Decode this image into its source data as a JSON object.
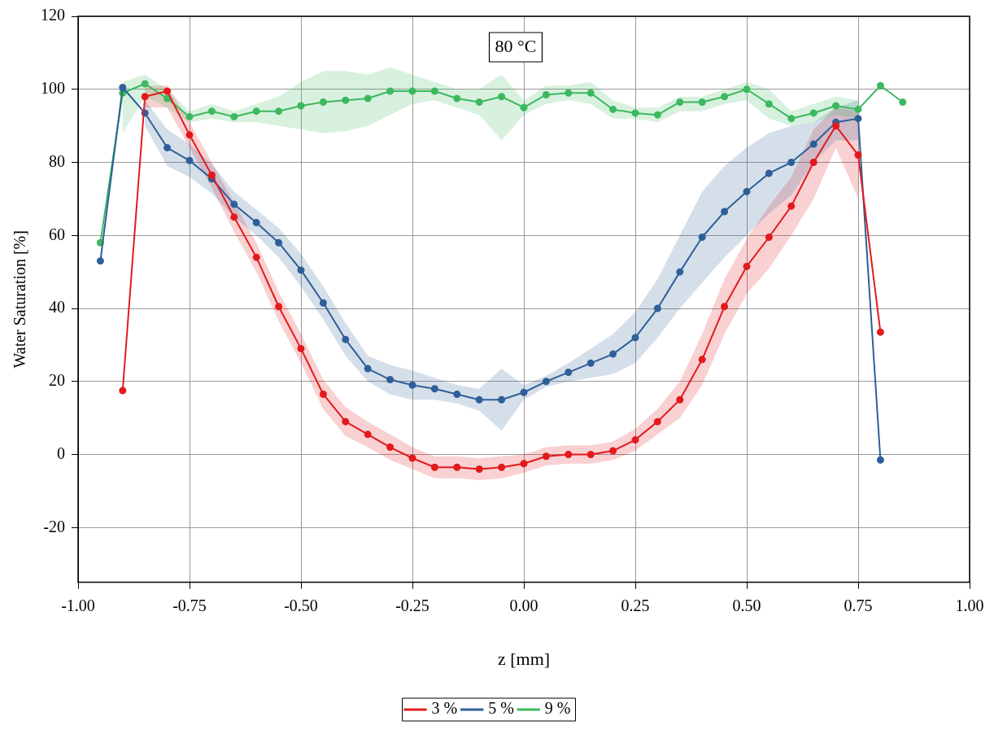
{
  "chart_data": {
    "type": "line",
    "xlabel": "z [mm]",
    "ylabel": "Water Saturation [%]",
    "annotations": [
      "80 °C"
    ],
    "x": [
      -0.95,
      -0.9,
      -0.85,
      -0.8,
      -0.75,
      -0.7,
      -0.65,
      -0.6,
      -0.55,
      -0.5,
      -0.45,
      -0.4,
      -0.35,
      -0.3,
      -0.25,
      -0.2,
      -0.15,
      -0.1,
      -0.05,
      0,
      0.05,
      0.1,
      0.15,
      0.2,
      0.25,
      0.3,
      0.35,
      0.4,
      0.45,
      0.5,
      0.55,
      0.6,
      0.65,
      0.7,
      0.75,
      0.8,
      0.85
    ],
    "series": [
      {
        "name": "3 %",
        "color": "#e31a1c",
        "values": [
          null,
          17.5,
          98,
          99.5,
          87.5,
          76.5,
          65,
          54,
          40.5,
          29,
          16.5,
          9,
          5.5,
          2,
          -1,
          -3.5,
          -3.5,
          -4,
          -3.5,
          -2.5,
          -0.5,
          0,
          0,
          1,
          4,
          9,
          15,
          26,
          40.5,
          51.5,
          59.5,
          68,
          80,
          90,
          82,
          33.5,
          null
        ],
        "lower": [
          null,
          null,
          95,
          95,
          84,
          73,
          61,
          50,
          36.5,
          25,
          12.5,
          5,
          2,
          -1.5,
          -4,
          -6.5,
          -6.5,
          -7,
          -6.5,
          -5,
          -3,
          -2.5,
          -2.5,
          -1.5,
          1,
          5.5,
          10,
          19,
          33,
          44,
          51,
          60,
          70,
          84,
          70,
          null,
          null
        ],
        "upper": [
          null,
          null,
          101,
          101,
          91,
          80,
          69,
          58,
          44.5,
          33,
          20.5,
          13,
          9,
          5.5,
          2,
          -0.5,
          -0.5,
          -1,
          -0.5,
          0,
          2,
          2.5,
          2.5,
          3.5,
          7,
          12.5,
          20,
          33,
          48,
          59,
          68,
          76,
          89,
          95,
          94,
          null,
          null
        ]
      },
      {
        "name": "5 %",
        "color": "#2f5f98",
        "values": [
          53,
          100.5,
          93.5,
          84,
          80.5,
          75.5,
          68.5,
          63.5,
          58,
          50.5,
          41.5,
          31.5,
          23.5,
          20.5,
          19,
          18,
          16.5,
          15,
          15,
          17,
          20,
          22.5,
          25,
          27.5,
          32,
          40,
          50,
          59.5,
          66.5,
          72,
          77,
          80,
          85,
          91,
          92,
          -1.5,
          null
        ],
        "lower": [
          null,
          null,
          90,
          79,
          76,
          71.5,
          65,
          60,
          54,
          46,
          37,
          27,
          20,
          16.5,
          15,
          15,
          14,
          12,
          6.5,
          15,
          18.5,
          20,
          21,
          22,
          25,
          32,
          40,
          47,
          54,
          60,
          66,
          71,
          80,
          86,
          86,
          null,
          null
        ],
        "upper": [
          null,
          null,
          97,
          89,
          85,
          79.5,
          72,
          67,
          62,
          55,
          46,
          36,
          27,
          24.5,
          23,
          21,
          19,
          18,
          23.5,
          19,
          21.5,
          25,
          29,
          33,
          39,
          48,
          60,
          72,
          79,
          84,
          88,
          90,
          91,
          95,
          97,
          null,
          null
        ]
      },
      {
        "name": "9 %",
        "color": "#3cb95f",
        "values": [
          58,
          99,
          101.5,
          97.5,
          92.5,
          94,
          92.5,
          94,
          94,
          95.5,
          96.5,
          97,
          97.5,
          99.5,
          99.5,
          99.5,
          97.5,
          96.5,
          98,
          95,
          98.5,
          99,
          99,
          94.5,
          93.5,
          93,
          96.5,
          96.5,
          98,
          100,
          96,
          92,
          93.5,
          95.5,
          94.5,
          101,
          96.5
        ],
        "lower": [
          null,
          88,
          98,
          95,
          91,
          92,
          91,
          91,
          90,
          89,
          88,
          88.5,
          90,
          93,
          96,
          97,
          95,
          93,
          86,
          93,
          96,
          97,
          96,
          92,
          92,
          91,
          94,
          94,
          96,
          97,
          92,
          90,
          91,
          93,
          92,
          null,
          null
        ],
        "upper": [
          null,
          102,
          104,
          100,
          94,
          96,
          94,
          96,
          98,
          102,
          105,
          105,
          104,
          106,
          104,
          102,
          100,
          100,
          104,
          97,
          101,
          101,
          102,
          97,
          95,
          95,
          98,
          98,
          100,
          102,
          100,
          94,
          96,
          98,
          97,
          null,
          null
        ]
      }
    ],
    "xlim": [
      -1,
      1
    ],
    "xticks": [
      {
        "value": -1,
        "label": "-1.00"
      },
      {
        "value": -0.75,
        "label": "-0.75"
      },
      {
        "value": -0.5,
        "label": "-0.50"
      },
      {
        "value": -0.25,
        "label": "-0.25"
      },
      {
        "value": 0,
        "label": "0.00"
      },
      {
        "value": 0.25,
        "label": "0.25"
      },
      {
        "value": 0.5,
        "label": "0.50"
      },
      {
        "value": 0.75,
        "label": "0.75"
      },
      {
        "value": 1,
        "label": "1.00"
      }
    ],
    "ylim": [
      -35,
      120
    ],
    "yticks": [
      -20,
      0,
      20,
      40,
      60,
      80,
      100,
      120
    ],
    "grid": true,
    "legend": "bottom",
    "marker": "circle",
    "line_style": "solid"
  }
}
